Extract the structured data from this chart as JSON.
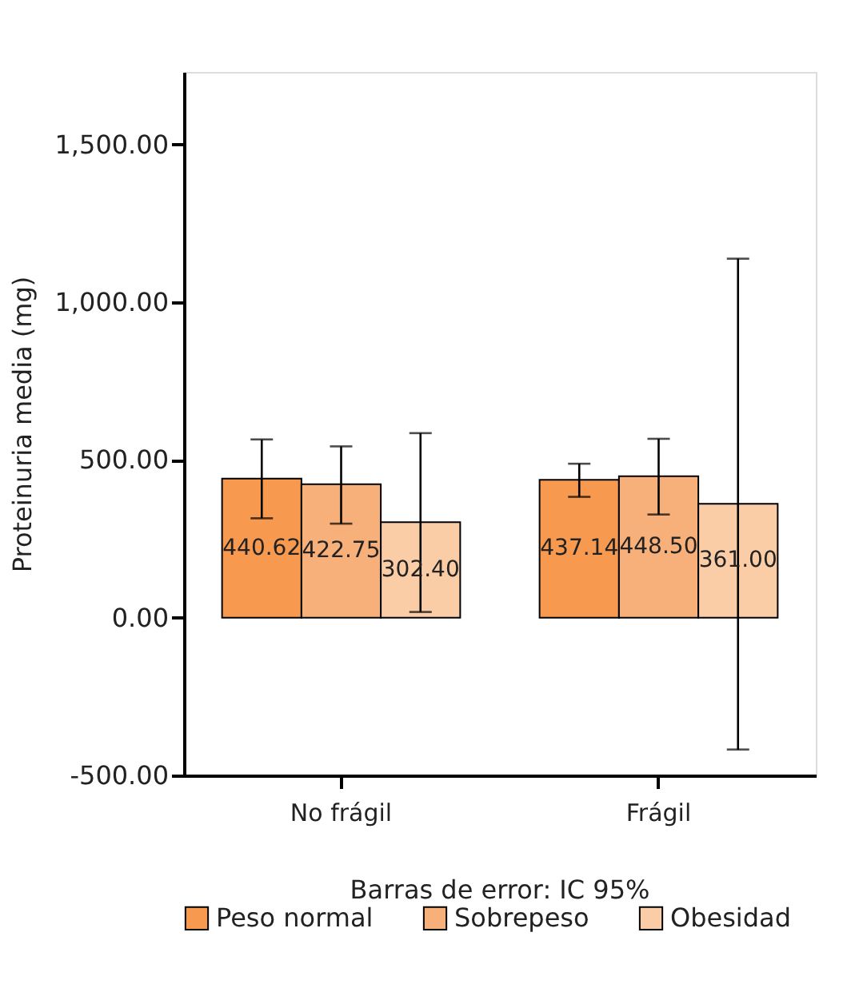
{
  "chart_data": {
    "type": "bar",
    "ylabel": "Proteinuria media (mg)",
    "categories": [
      "No frágil",
      "Frágil"
    ],
    "series": [
      {
        "name": "Peso normal",
        "color": "#f79a50",
        "values": [
          440.62,
          437.14
        ],
        "value_labels": [
          "440.62",
          "437.14"
        ],
        "errors": [
          [
            315,
            565
          ],
          [
            383,
            488
          ]
        ]
      },
      {
        "name": "Sobrepeso",
        "color": "#f8b07a",
        "values": [
          422.75,
          448.5
        ],
        "value_labels": [
          "422.75",
          "448.50"
        ],
        "errors": [
          [
            298,
            543
          ],
          [
            327,
            567
          ]
        ]
      },
      {
        "name": "Obesidad",
        "color": "#fbcda6",
        "values": [
          302.4,
          361.0
        ],
        "value_labels": [
          "302.40",
          "361.00"
        ],
        "errors": [
          [
            18,
            585
          ],
          [
            -418,
            1138
          ]
        ]
      }
    ],
    "ylim": [
      -500,
      1730
    ],
    "yticks": [
      {
        "value": -500,
        "label": "-500.00"
      },
      {
        "value": 0,
        "label": "0.00"
      },
      {
        "value": 500,
        "label": "500.00"
      },
      {
        "value": 1000,
        "label": "1,000.00"
      },
      {
        "value": 1500,
        "label": "1,500.00"
      }
    ],
    "annotations": [
      "Barras de error: IC 95%"
    ],
    "legend": "bottom",
    "grid": false
  }
}
